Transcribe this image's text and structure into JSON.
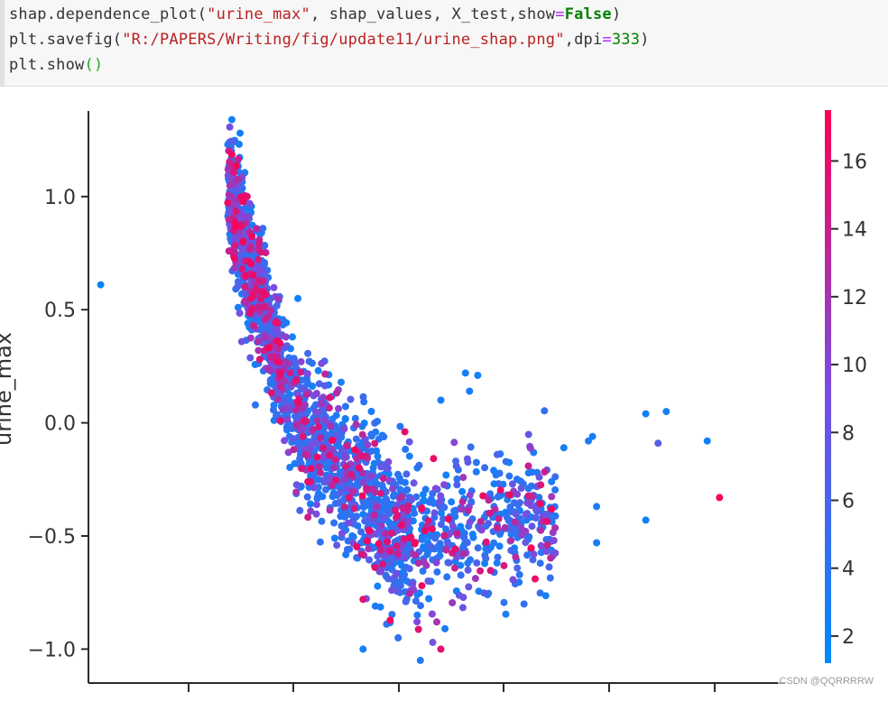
{
  "code": {
    "line1": {
      "a": "shap.dependence_plot(",
      "b": "\"urine_max\"",
      "c": ", shap_values, X_test,show",
      "d": "=",
      "e": "False",
      "f": ")"
    },
    "line2": {
      "a": "plt.savefig(",
      "b": "\"R:/PAPERS/Writing/fig/update11/urine_shap.png\"",
      "c": ",dpi",
      "d": "=",
      "e": "333",
      "f": ")"
    },
    "line3": {
      "a": "plt.show",
      "b": "()"
    }
  },
  "chart_data": {
    "type": "scatter",
    "ylabel": "urine_max",
    "ylim": [
      -1.15,
      1.45
    ],
    "yticks": [
      -1.0,
      -0.5,
      0.0,
      0.5,
      1.0
    ],
    "ytick_labels": [
      "−1.0",
      "−0.5",
      "0.0",
      "0.5",
      "1.0"
    ],
    "x_tick_count": 6,
    "x_tick_labels_visible": false,
    "colorbar": {
      "range": [
        1.2,
        17.5
      ],
      "ticks": [
        2,
        4,
        6,
        8,
        10,
        12,
        14,
        16
      ],
      "tick_labels": [
        "2",
        "4",
        "6",
        "8",
        "10",
        "12",
        "14",
        "16"
      ],
      "colors": [
        "#008afb",
        "#7a4ce0",
        "#ff0052"
      ]
    },
    "outliers": [
      {
        "x": 0.3,
        "y": 0.61,
        "c": 2.0
      },
      {
        "x": 3.5,
        "y": 1.34,
        "c": 2.5
      },
      {
        "x": 3.7,
        "y": 1.28,
        "c": 2.5
      },
      {
        "x": 3.4,
        "y": 1.23,
        "c": 3.0
      },
      {
        "x": 9.2,
        "y": 0.22,
        "c": 2.5
      },
      {
        "x": 9.5,
        "y": 0.21,
        "c": 2.5
      },
      {
        "x": 9.3,
        "y": 0.14,
        "c": 3.0
      },
      {
        "x": 8.6,
        "y": 0.1,
        "c": 3.0
      },
      {
        "x": 13.6,
        "y": 0.04,
        "c": 2.5
      },
      {
        "x": 14.1,
        "y": 0.05,
        "c": 2.5
      },
      {
        "x": 12.3,
        "y": -0.06,
        "c": 3.0
      },
      {
        "x": 12.2,
        "y": -0.08,
        "c": 3.0
      },
      {
        "x": 13.9,
        "y": -0.09,
        "c": 7.0
      },
      {
        "x": 15.1,
        "y": -0.08,
        "c": 2.5
      },
      {
        "x": 11.6,
        "y": -0.11,
        "c": 2.5
      },
      {
        "x": 15.4,
        "y": -0.33,
        "c": 17.0
      },
      {
        "x": 11.0,
        "y": -0.24,
        "c": 8.0
      },
      {
        "x": 11.3,
        "y": -0.26,
        "c": 3.0
      },
      {
        "x": 12.4,
        "y": -0.37,
        "c": 3.0
      },
      {
        "x": 13.6,
        "y": -0.43,
        "c": 2.5
      },
      {
        "x": 12.4,
        "y": -0.53,
        "c": 3.0
      },
      {
        "x": 11.2,
        "y": -0.54,
        "c": 14.0
      },
      {
        "x": 10.8,
        "y": -0.56,
        "c": 3.0
      },
      {
        "x": 10.9,
        "y": -0.69,
        "c": 16.0
      },
      {
        "x": 6.7,
        "y": -0.78,
        "c": 16.0
      },
      {
        "x": 6.7,
        "y": -1.0,
        "c": 2.5
      },
      {
        "x": 8.1,
        "y": -1.05,
        "c": 3.0
      },
      {
        "x": 8.7,
        "y": -0.91,
        "c": 3.0
      },
      {
        "x": 8.4,
        "y": -0.97,
        "c": 9.0
      },
      {
        "x": 8.6,
        "y": -1.0,
        "c": 16.0
      },
      {
        "x": 8.5,
        "y": -0.88,
        "c": 12.0
      },
      {
        "x": 7.4,
        "y": -0.74,
        "c": 9.0
      },
      {
        "x": 7.0,
        "y": -0.81,
        "c": 3.0
      }
    ]
  },
  "watermark": "CSDN @QQRRRRW"
}
